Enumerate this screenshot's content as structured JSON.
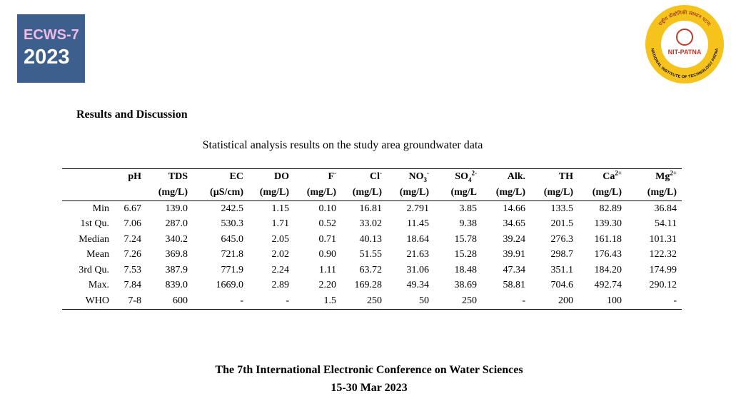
{
  "logo": {
    "line1": "ECWS-7",
    "line2": "2023"
  },
  "institute_logo": {
    "hindi": "राष्ट्रीय प्रौद्योगिकी संस्थान पटना",
    "short": "NIT-PATNA",
    "ring": "NATIONAL INSTITUTE OF TECHNOLOGY PATNA"
  },
  "section_title": "Results and Discussion",
  "table": {
    "caption": "Statistical analysis results on the study area groundwater data",
    "columns": [
      {
        "name": "pH"
      },
      {
        "name": "TDS",
        "unit": "(mg/L)"
      },
      {
        "name": "EC",
        "unit": "(µS/cm)"
      },
      {
        "name": "DO",
        "unit": "(mg/L)"
      },
      {
        "name": "F",
        "sup": "-",
        "unit": "(mg/L)"
      },
      {
        "name": "Cl",
        "sup": "-",
        "unit": "(mg/L)"
      },
      {
        "name": "NO",
        "sub": "3",
        "sup": "-",
        "unit": "(mg/L)"
      },
      {
        "name": "SO",
        "sub": "4",
        "sup": "2-",
        "unit": "(mg/L"
      },
      {
        "name": "Alk.",
        "unit": "(mg/L)"
      },
      {
        "name": "TH",
        "unit": "(mg/L)"
      },
      {
        "name": "Ca",
        "sup": "2+",
        "unit": "(mg/L)"
      },
      {
        "name": "Mg",
        "sup": "2+",
        "unit": "(mg/L)"
      }
    ],
    "rows": [
      {
        "label": "Min",
        "cells": [
          "6.67",
          "139.0",
          "242.5",
          "1.15",
          "0.10",
          "16.81",
          "2.791",
          "3.85",
          "14.66",
          "133.5",
          "82.89",
          "36.84"
        ]
      },
      {
        "label": "1st Qu.",
        "cells": [
          "7.06",
          "287.0",
          "530.3",
          "1.71",
          "0.52",
          "33.02",
          "11.45",
          "9.38",
          "34.65",
          "201.5",
          "139.30",
          "54.11"
        ]
      },
      {
        "label": "Median",
        "cells": [
          "7.24",
          "340.2",
          "645.0",
          "2.05",
          "0.71",
          "40.13",
          "18.64",
          "15.78",
          "39.24",
          "276.3",
          "161.18",
          "101.31"
        ]
      },
      {
        "label": "Mean",
        "cells": [
          "7.26",
          "369.8",
          "721.8",
          "2.02",
          "0.90",
          "51.55",
          "21.63",
          "15.28",
          "39.91",
          "298.7",
          "176.43",
          "122.32"
        ]
      },
      {
        "label": "3rd Qu.",
        "cells": [
          "7.53",
          "387.9",
          "771.9",
          "2.24",
          "1.11",
          "63.72",
          "31.06",
          "18.48",
          "47.34",
          "351.1",
          "184.20",
          "174.99"
        ]
      },
      {
        "label": "Max.",
        "cells": [
          "7.84",
          "839.0",
          "1669.0",
          "2.89",
          "2.20",
          "169.28",
          "49.34",
          "38.69",
          "58.81",
          "704.6",
          "492.74",
          "290.12"
        ]
      },
      {
        "label": "WHO",
        "cells": [
          "7-8",
          "600",
          "-",
          "-",
          "1.5",
          "250",
          "50",
          "250",
          "-",
          "200",
          "100",
          "-"
        ]
      }
    ]
  },
  "footer": {
    "line1": "The 7th International Electronic Conference on Water Sciences",
    "line2": "15-30 Mar 2023"
  }
}
